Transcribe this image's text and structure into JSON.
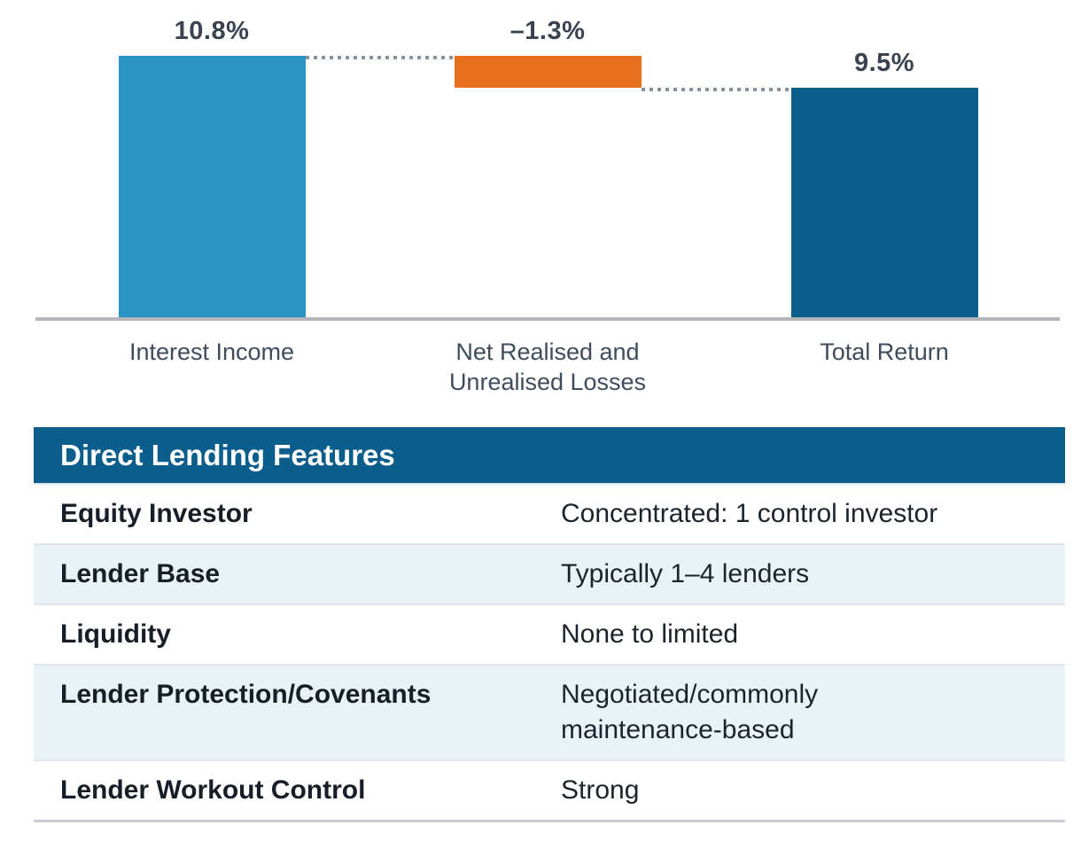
{
  "chart_data": {
    "type": "bar",
    "subtype": "waterfall",
    "unit": "%",
    "categories": [
      "Interest Income",
      "Net Realised and Unrealised Losses",
      "Total Return"
    ],
    "values": [
      10.8,
      -1.3,
      9.5
    ],
    "ylim": [
      0,
      11.8
    ],
    "grid": "off",
    "legend": "none",
    "bars": [
      {
        "category": "Interest Income",
        "value": 10.8,
        "value_label": "10.8%",
        "start": 0,
        "end": 10.8,
        "color": "#2B93C4"
      },
      {
        "category": "Net Realised and Unrealised Losses",
        "value": -1.3,
        "value_label": "–1.3%",
        "start": 10.8,
        "end": 9.5,
        "color": "#E7701E"
      },
      {
        "category": "Total Return",
        "value": 9.5,
        "value_label": "9.5%",
        "start": 0,
        "end": 9.5,
        "color": "#0B5D8C"
      }
    ],
    "connectors": [
      {
        "level": 10.8,
        "from_bar": 0,
        "to_bar": 1
      },
      {
        "level": 9.5,
        "from_bar": 1,
        "to_bar": 2
      }
    ],
    "baseline_color": "#B2B6BB",
    "connector_dot_color": "#8793A0"
  },
  "table": {
    "title": "Direct Lending Features",
    "header_bg": "#0B5D8C",
    "alt_row_bg": "#E8F3F8",
    "rows": [
      {
        "feature": "Equity Investor",
        "value": "Concentrated: 1 control investor"
      },
      {
        "feature": "Lender Base",
        "value": "Typically 1–4 lenders"
      },
      {
        "feature": "Liquidity",
        "value": "None to limited"
      },
      {
        "feature": "Lender Protection/Covenants",
        "value": "Negotiated/commonly\nmaintenance-based"
      },
      {
        "feature": "Lender Workout Control",
        "value": "Strong"
      }
    ]
  }
}
